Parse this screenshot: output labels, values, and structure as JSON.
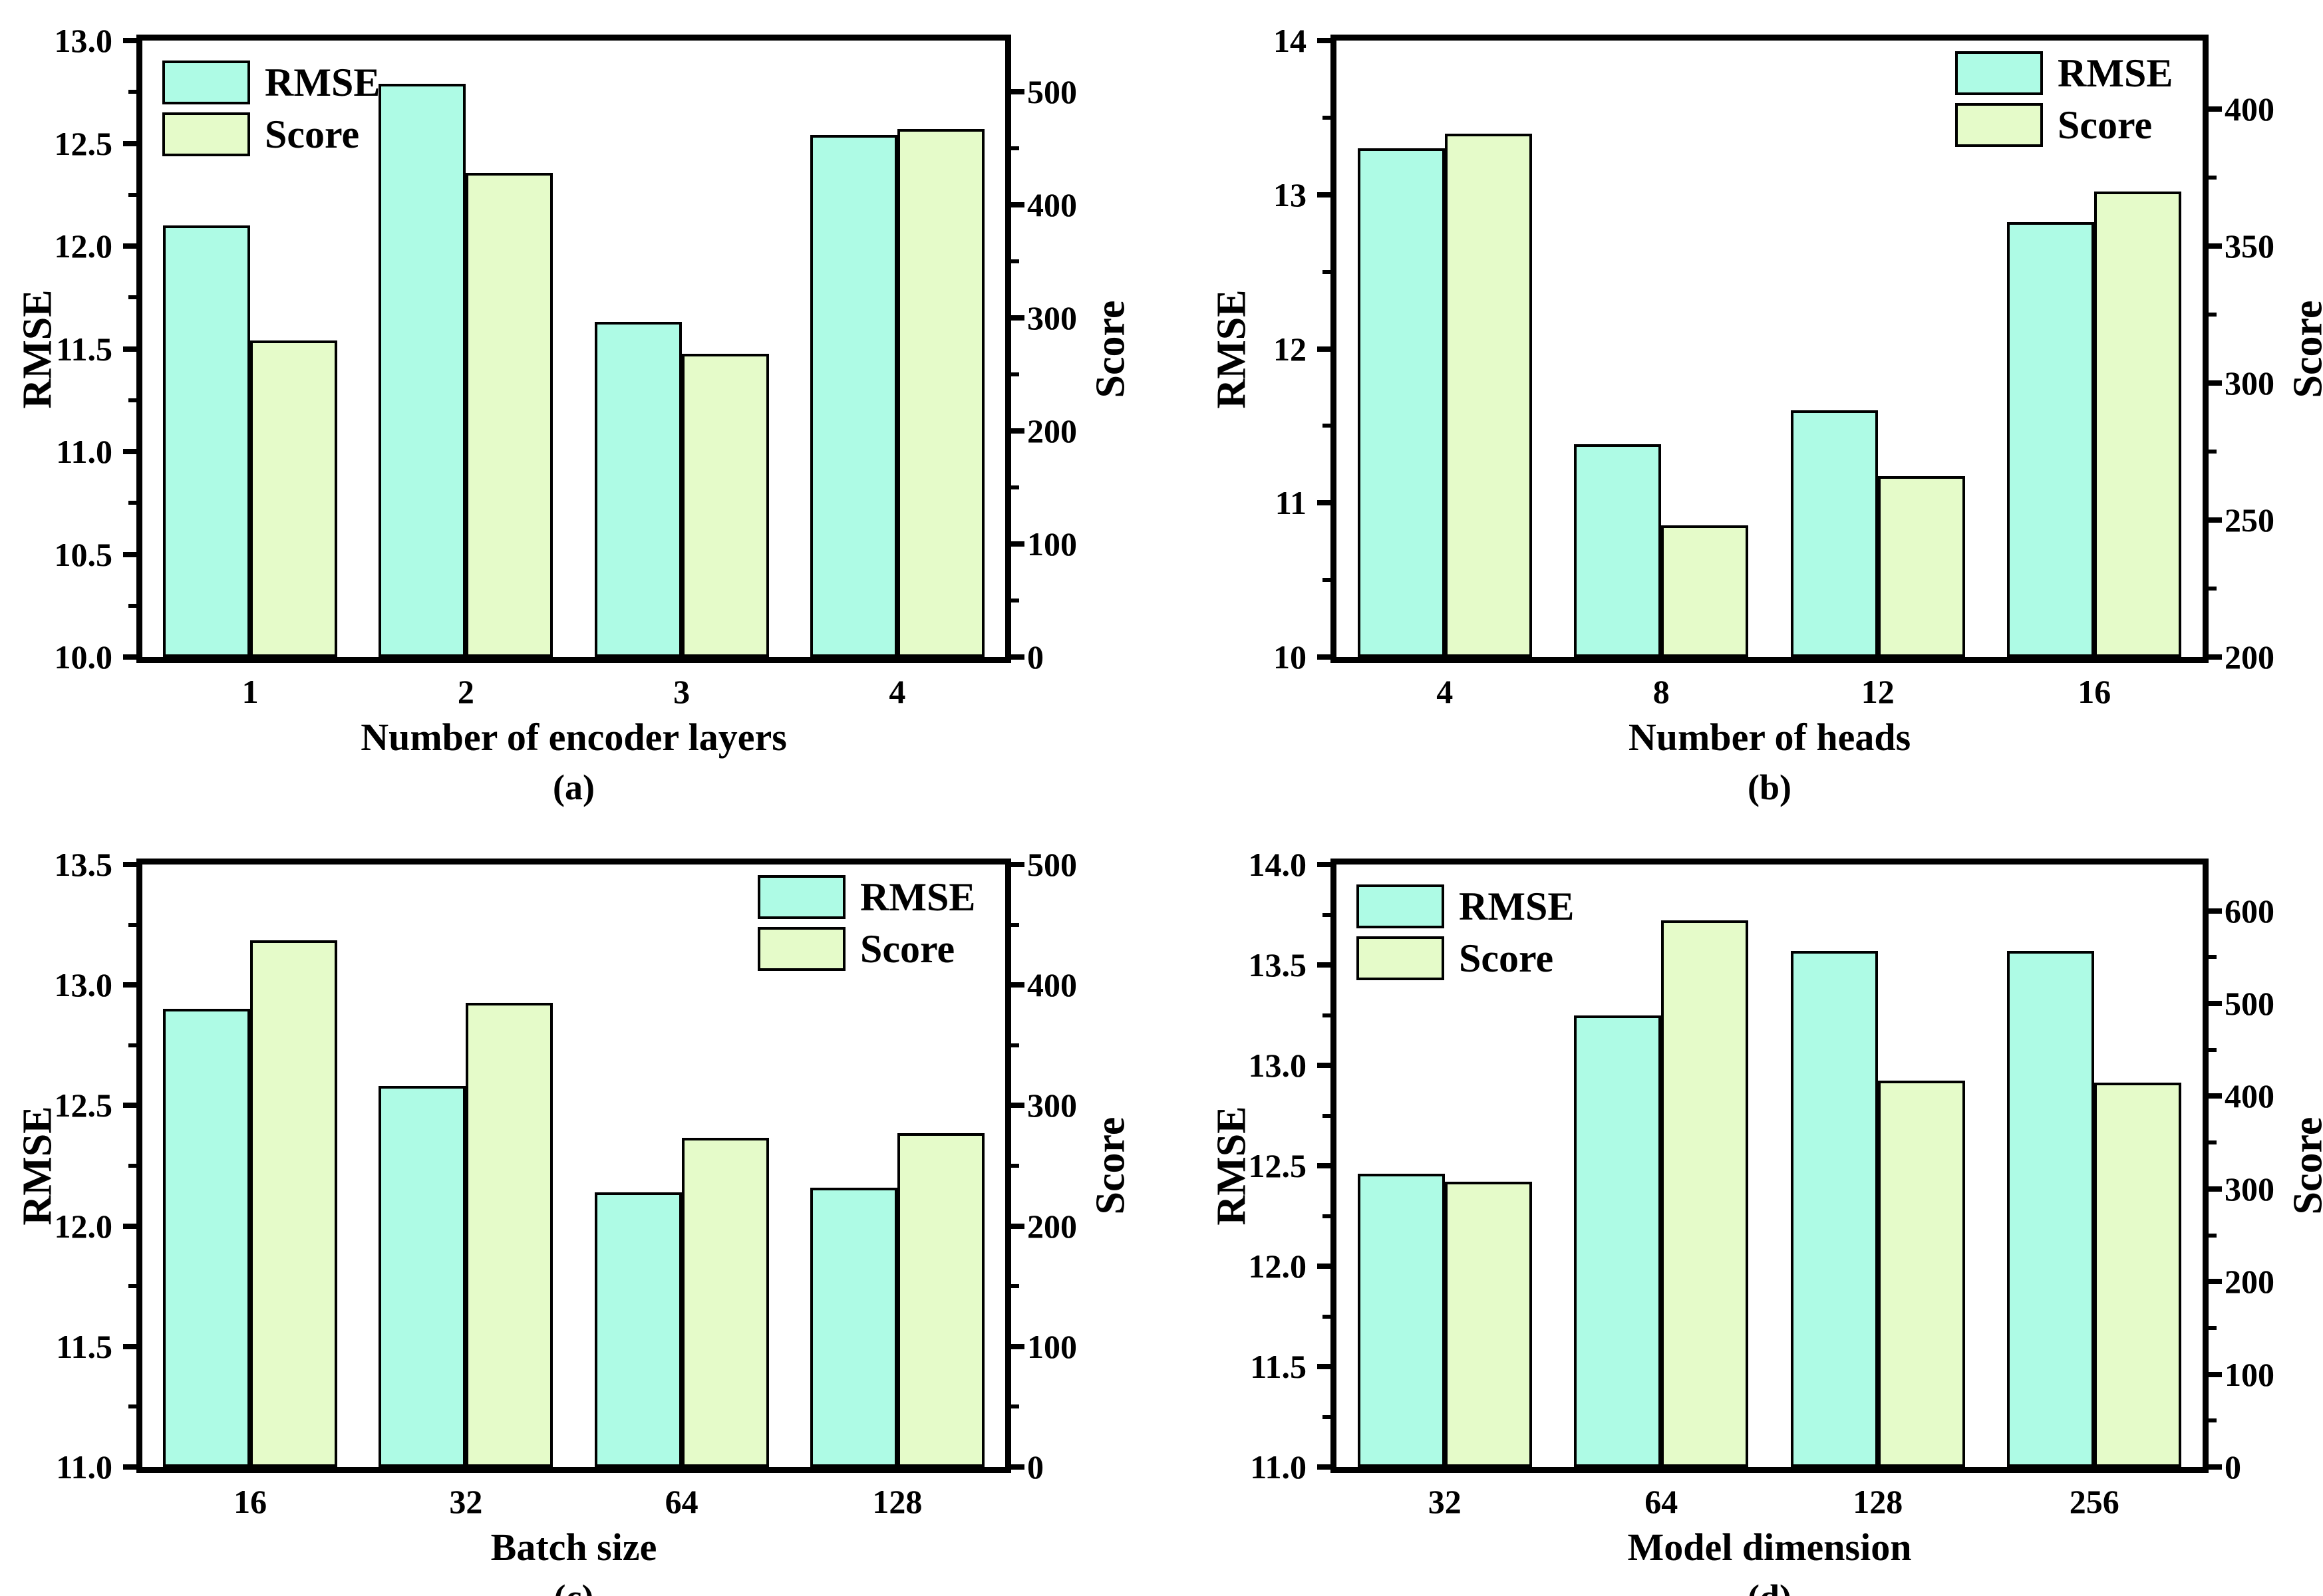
{
  "figure": {
    "background": "#FFFFFF",
    "frame_color": "#000000",
    "text_color": "#000000",
    "rmse_bar_color": "#AEFBE5",
    "score_bar_color": "#E5FBC9"
  },
  "chart_data": [
    {
      "id": "a",
      "type": "bar",
      "caption": "(a)",
      "xlabel": "Number of encoder layers",
      "categories": [
        "1",
        "2",
        "3",
        "4"
      ],
      "left_axis": {
        "label": "RMSE",
        "lim": [
          10.0,
          13.0
        ],
        "ticks": [
          "10.0",
          "10.5",
          "11.0",
          "11.5",
          "12.0",
          "12.5",
          "13.0"
        ],
        "minor_step": 0.25
      },
      "right_axis": {
        "label": "Score",
        "lim": [
          0,
          545
        ],
        "ticks": [
          "0",
          "100",
          "200",
          "300",
          "400",
          "500"
        ],
        "minor_step": 50
      },
      "series": [
        {
          "name": "RMSE",
          "axis": "left",
          "color": "#AEFBE5",
          "values": [
            12.1,
            12.79,
            11.63,
            12.54
          ]
        },
        {
          "name": "Score",
          "axis": "right",
          "color": "#E5FBC9",
          "values": [
            280,
            428,
            268,
            467
          ]
        }
      ],
      "legend_pos": "top-left",
      "grid": false
    },
    {
      "id": "b",
      "type": "bar",
      "caption": "(b)",
      "xlabel": "Number of heads",
      "categories": [
        "4",
        "8",
        "12",
        "16"
      ],
      "left_axis": {
        "label": "RMSE",
        "lim": [
          10,
          14
        ],
        "ticks": [
          "10",
          "11",
          "12",
          "13",
          "14"
        ],
        "minor_step": 0.5
      },
      "right_axis": {
        "label": "Score",
        "lim": [
          200,
          425
        ],
        "ticks": [
          "200",
          "250",
          "300",
          "350",
          "400"
        ],
        "minor_step": 25
      },
      "series": [
        {
          "name": "RMSE",
          "axis": "left",
          "color": "#AEFBE5",
          "values": [
            13.3,
            11.38,
            11.6,
            12.82
          ]
        },
        {
          "name": "Score",
          "axis": "right",
          "color": "#E5FBC9",
          "values": [
            391,
            248,
            266,
            370
          ]
        }
      ],
      "legend_pos": "top-right",
      "grid": false
    },
    {
      "id": "c",
      "type": "bar",
      "caption": "(c)",
      "xlabel": "Batch size",
      "categories": [
        "16",
        "32",
        "64",
        "128"
      ],
      "left_axis": {
        "label": "RMSE",
        "lim": [
          11.0,
          13.5
        ],
        "ticks": [
          "11.0",
          "11.5",
          "12.0",
          "12.5",
          "13.0",
          "13.5"
        ],
        "minor_step": 0.25
      },
      "right_axis": {
        "label": "Score",
        "lim": [
          0,
          500
        ],
        "ticks": [
          "0",
          "100",
          "200",
          "300",
          "400",
          "500"
        ],
        "minor_step": 50
      },
      "series": [
        {
          "name": "RMSE",
          "axis": "left",
          "color": "#AEFBE5",
          "values": [
            12.9,
            12.58,
            12.14,
            12.16
          ]
        },
        {
          "name": "Score",
          "axis": "right",
          "color": "#E5FBC9",
          "values": [
            437,
            385,
            273,
            277
          ]
        }
      ],
      "legend_pos": "top-right",
      "grid": false
    },
    {
      "id": "d",
      "type": "bar",
      "caption": "(d)",
      "xlabel": "Model dimension",
      "categories": [
        "32",
        "64",
        "128",
        "256"
      ],
      "left_axis": {
        "label": "RMSE",
        "lim": [
          11.0,
          14.0
        ],
        "ticks": [
          "11.0",
          "11.5",
          "12.0",
          "12.5",
          "13.0",
          "13.5",
          "14.0"
        ],
        "minor_step": 0.25
      },
      "right_axis": {
        "label": "Score",
        "lim": [
          0,
          650
        ],
        "ticks": [
          "0",
          "100",
          "200",
          "300",
          "400",
          "500",
          "600"
        ],
        "minor_step": 50
      },
      "series": [
        {
          "name": "RMSE",
          "axis": "left",
          "color": "#AEFBE5",
          "values": [
            12.46,
            13.25,
            13.57,
            13.57
          ]
        },
        {
          "name": "Score",
          "axis": "right",
          "color": "#E5FBC9",
          "values": [
            308,
            590,
            417,
            415
          ]
        }
      ],
      "legend_pos": "top-left",
      "grid": false
    }
  ]
}
